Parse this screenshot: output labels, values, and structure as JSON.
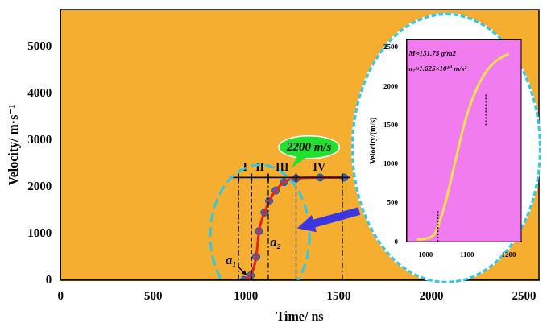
{
  "chart_data": [
    {
      "type": "scatter",
      "x_label": "Time/ ns",
      "y_label": "Velocity/ m·s⁻¹",
      "xlim": [
        0,
        2580
      ],
      "xticks": [
        0,
        500,
        1000,
        1500,
        2000,
        2500
      ],
      "ylim": [
        0,
        5800
      ],
      "yticks": [
        0,
        1000,
        2000,
        3000,
        4000,
        5000
      ],
      "grid": false,
      "x": [
        990,
        1025,
        1055,
        1070,
        1100,
        1125,
        1160,
        1205,
        1270,
        1400,
        1530
      ],
      "series": [
        {
          "color": "#e8231e",
          "line_style": "solid",
          "marker": "none",
          "values": [
            0,
            100,
            500,
            1050,
            1450,
            1700,
            1920,
            2100,
            2180,
            2200,
            2200
          ]
        },
        {
          "color": "#2f6fc4",
          "line_style": "none",
          "marker": "circle",
          "values": [
            0,
            100,
            500,
            1050,
            1450,
            1700,
            1920,
            2100,
            2180,
            2200,
            2200
          ]
        }
      ],
      "regions": [
        {
          "label": "I",
          "from": 960,
          "to": 1030
        },
        {
          "label": "II",
          "from": 1030,
          "to": 1120
        },
        {
          "label": "III",
          "from": 1120,
          "to": 1270
        },
        {
          "label": "IV",
          "from": 1270,
          "to": 1520
        }
      ],
      "region_velocity": 2200,
      "annotations": [
        {
          "text": "2200 m/s",
          "x": 1340,
          "y": 2850
        },
        {
          "text": "a₁",
          "x": 920,
          "y": 420
        },
        {
          "text": "a₂",
          "x": 1160,
          "y": 800
        }
      ]
    },
    {
      "type": "line",
      "y_label": "Velocity/(m/s)",
      "xlim": [
        955,
        1230
      ],
      "xticks": [
        1000,
        1100,
        1200
      ],
      "ylim": [
        0,
        2600
      ],
      "yticks": [
        0,
        500,
        1000,
        1500,
        2000,
        2500
      ],
      "grid": false,
      "x": [
        980,
        1000,
        1020,
        1030,
        1050,
        1070,
        1090,
        1110,
        1130,
        1150,
        1170,
        1200
      ],
      "series": [
        {
          "color": "#f5e050",
          "line_style": "solid",
          "marker": "none",
          "values": [
            30,
            40,
            90,
            200,
            550,
            1000,
            1450,
            1800,
            2050,
            2220,
            2330,
            2420
          ]
        }
      ],
      "bounds": [
        {
          "x": 1030,
          "from": 0,
          "to": 400
        },
        {
          "x": 1145,
          "from": 1500,
          "to": 1900
        }
      ],
      "annotations": [
        {
          "text": "M≈131.75 g/m2",
          "x": 960,
          "y": 2420
        },
        {
          "text": "a₂≈1.625×10¹⁰ m/s²",
          "x": 960,
          "y": 2220
        }
      ]
    }
  ]
}
